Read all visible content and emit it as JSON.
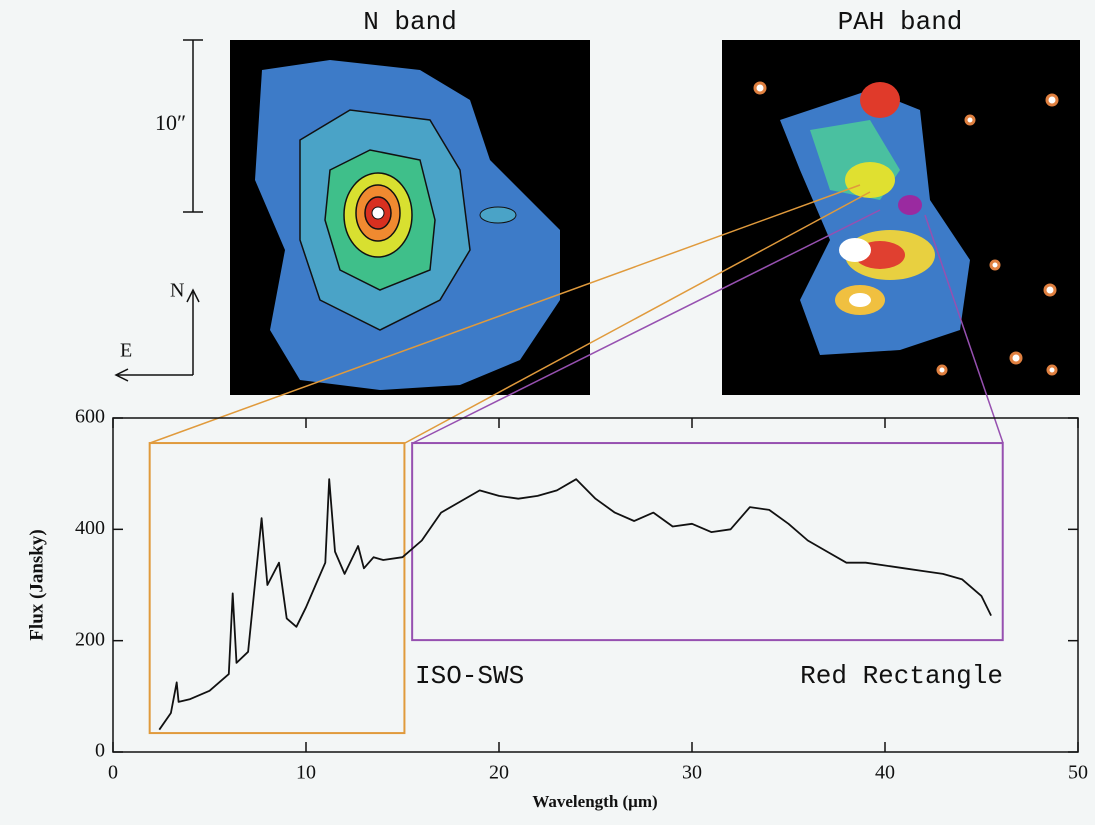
{
  "chart_data": {
    "type": "line",
    "panel_titles": [
      "N band",
      "PAH band"
    ],
    "scale_label": "10″",
    "compass": [
      "N",
      "E"
    ],
    "annotations": [
      "ISO-SWS",
      "Red Rectangle"
    ],
    "xlabel": "Wavelength (μm)",
    "ylabel": "Flux (Jansky)",
    "xlim": [
      0,
      50
    ],
    "ylim": [
      0,
      600
    ],
    "xticks": [
      0,
      10,
      20,
      30,
      40,
      50
    ],
    "yticks": [
      0,
      200,
      400,
      600
    ],
    "color": "#111111",
    "x": [
      2.4,
      3,
      3.3,
      3.4,
      4,
      5,
      6,
      6.2,
      6.4,
      7,
      7.7,
      8,
      8.6,
      9,
      9.5,
      10,
      10.5,
      11,
      11.2,
      11.5,
      12,
      12.7,
      13,
      13.5,
      14,
      15,
      16,
      17,
      18,
      19,
      20,
      21,
      22,
      23,
      24,
      25,
      26,
      27,
      28,
      29,
      30,
      31,
      32,
      33,
      34,
      35,
      36,
      37,
      38,
      39,
      40,
      41,
      42,
      43,
      44,
      45,
      45.5
    ],
    "values": [
      40,
      70,
      125,
      90,
      95,
      110,
      140,
      285,
      160,
      180,
      420,
      300,
      340,
      240,
      225,
      260,
      300,
      340,
      490,
      360,
      320,
      370,
      330,
      350,
      345,
      350,
      380,
      430,
      450,
      470,
      460,
      455,
      460,
      470,
      490,
      455,
      430,
      415,
      430,
      405,
      410,
      395,
      400,
      440,
      435,
      410,
      380,
      360,
      340,
      340,
      335,
      330,
      325,
      320,
      310,
      280,
      245
    ],
    "boxes": [
      {
        "x": [
          1.9,
          15.1
        ],
        "y": [
          34,
          555
        ],
        "color": "#e09a3c"
      },
      {
        "x": [
          15.5,
          46.1
        ],
        "y": [
          201,
          555
        ],
        "color": "#9650b0"
      }
    ]
  }
}
